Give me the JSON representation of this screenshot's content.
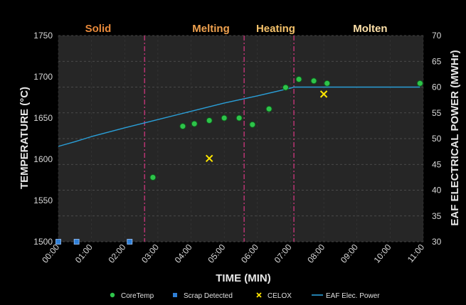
{
  "chart_data": {
    "type": "scatter",
    "xlabel": "TIME (MIN)",
    "ylabel": "TEMPERATURE (°C)",
    "y2label": "EAF ELECTRICAL POWER (MWHr)",
    "xlim": [
      0,
      11
    ],
    "ylim": [
      1500,
      1750
    ],
    "y2lim": [
      30,
      70
    ],
    "x_ticks": [
      "00:00",
      "01:00",
      "02:00",
      "03:00",
      "04:00",
      "05:00",
      "06:00",
      "07:00",
      "08:00",
      "09:00",
      "10:00",
      "11:00"
    ],
    "y_ticks": [
      "1500",
      "1550",
      "1600",
      "1650",
      "1700",
      "1750"
    ],
    "y2_ticks": [
      "30",
      "35",
      "40",
      "45",
      "50",
      "55",
      "60",
      "65",
      "70"
    ],
    "phases": [
      {
        "label": "Solid",
        "x": 1.2,
        "color": "#e8893a"
      },
      {
        "label": "Melting",
        "x": 4.6,
        "color": "#f0a24f"
      },
      {
        "label": "Heating",
        "x": 6.55,
        "color": "#f5c26b"
      },
      {
        "label": "Molten",
        "x": 9.4,
        "color": "#fde0a8"
      }
    ],
    "phase_boundaries": [
      2.6,
      5.6,
      7.1
    ],
    "series": [
      {
        "name": "CoreTemp",
        "kind": "points",
        "axis": "left",
        "color": "#2ec44a",
        "x": [
          2.85,
          3.75,
          4.1,
          4.55,
          5.0,
          5.45,
          5.85,
          6.35,
          6.85,
          7.25,
          7.7,
          8.1,
          10.9
        ],
        "y": [
          1578,
          1640,
          1643,
          1647,
          1650,
          1650,
          1642,
          1661,
          1687,
          1697,
          1695,
          1692,
          1692
        ]
      },
      {
        "name": "Scrap Detected",
        "kind": "squares",
        "axis": "left",
        "color": "#2f7fd6",
        "x": [
          0.0,
          0.55,
          2.15
        ],
        "y": [
          1500,
          1500,
          1500
        ]
      },
      {
        "name": "CELOX",
        "kind": "cross",
        "axis": "left",
        "color": "#ffe600",
        "x": [
          4.55,
          8.0
        ],
        "y": [
          1601,
          1679
        ]
      },
      {
        "name": "EAF Elec. Power",
        "kind": "line",
        "axis": "right",
        "color": "#2a9fd8",
        "x": [
          0,
          0.5,
          1,
          2,
          3,
          4,
          5,
          6,
          7,
          7.1,
          8,
          9,
          10,
          10.9
        ],
        "y": [
          48.5,
          49.4,
          50.4,
          52.1,
          53.7,
          55.3,
          56.9,
          58.3,
          59.8,
          60,
          60,
          60,
          60,
          60
        ]
      }
    ],
    "grid": true,
    "legend_position": "bottom"
  }
}
